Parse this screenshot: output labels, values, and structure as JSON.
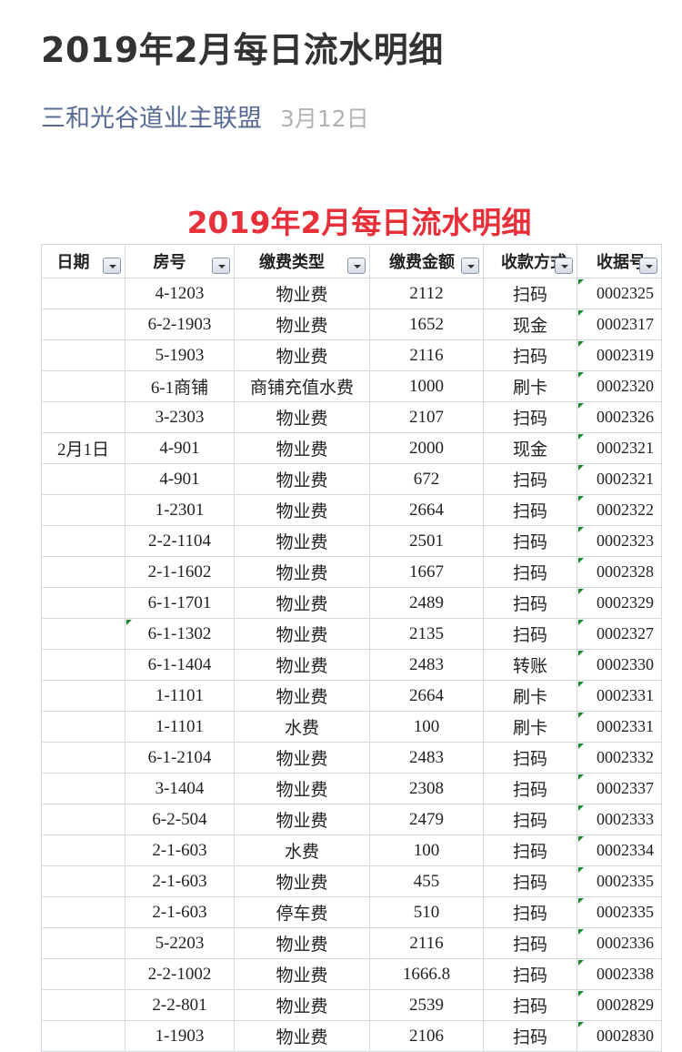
{
  "article": {
    "title": "2019年2月每日流水明细",
    "account": "三和光谷道业主联盟",
    "date": "3月12日"
  },
  "sheet": {
    "title": "2019年2月每日流水明细",
    "title_color": "#e8303b",
    "headers": [
      "日期",
      "房号",
      "缴费类型",
      "缴费金额",
      "收款方式",
      "收据号"
    ],
    "date_label": "2月1日",
    "rows": [
      [
        "4-1203",
        "物业费",
        "2112",
        "扫码",
        "0002325"
      ],
      [
        "6-2-1903",
        "物业费",
        "1652",
        "现金",
        "0002317"
      ],
      [
        "5-1903",
        "物业费",
        "2116",
        "扫码",
        "0002319"
      ],
      [
        "6-1商铺",
        "商铺充值水费",
        "1000",
        "刷卡",
        "0002320"
      ],
      [
        "3-2303",
        "物业费",
        "2107",
        "扫码",
        "0002326"
      ],
      [
        "4-901",
        "物业费",
        "2000",
        "现金",
        "0002321"
      ],
      [
        "4-901",
        "物业费",
        "672",
        "扫码",
        "0002321"
      ],
      [
        "1-2301",
        "物业费",
        "2664",
        "扫码",
        "0002322"
      ],
      [
        "2-2-1104",
        "物业费",
        "2501",
        "扫码",
        "0002323"
      ],
      [
        "2-1-1602",
        "物业费",
        "1667",
        "扫码",
        "0002328"
      ],
      [
        "6-1-1701",
        "物业费",
        "2489",
        "扫码",
        "0002329"
      ],
      [
        "6-1-1302",
        "物业费",
        "2135",
        "扫码",
        "0002327"
      ],
      [
        "6-1-1404",
        "物业费",
        "2483",
        "转账",
        "0002330"
      ],
      [
        "1-1101",
        "物业费",
        "2664",
        "刷卡",
        "0002331"
      ],
      [
        "1-1101",
        "水费",
        "100",
        "刷卡",
        "0002331"
      ],
      [
        "6-1-2104",
        "物业费",
        "2483",
        "扫码",
        "0002332"
      ],
      [
        "3-1404",
        "物业费",
        "2308",
        "扫码",
        "0002337"
      ],
      [
        "6-2-504",
        "物业费",
        "2479",
        "扫码",
        "0002333"
      ],
      [
        "2-1-603",
        "水费",
        "100",
        "扫码",
        "0002334"
      ],
      [
        "2-1-603",
        "物业费",
        "455",
        "扫码",
        "0002335"
      ],
      [
        "2-1-603",
        "停车费",
        "510",
        "扫码",
        "0002335"
      ],
      [
        "5-2203",
        "物业费",
        "2116",
        "扫码",
        "0002336"
      ],
      [
        "2-2-1002",
        "物业费",
        "1666.8",
        "扫码",
        "0002338"
      ],
      [
        "2-2-801",
        "物业费",
        "2539",
        "扫码",
        "0002829"
      ],
      [
        "1-1903",
        "物业费",
        "2106",
        "扫码",
        "0002830"
      ]
    ]
  }
}
